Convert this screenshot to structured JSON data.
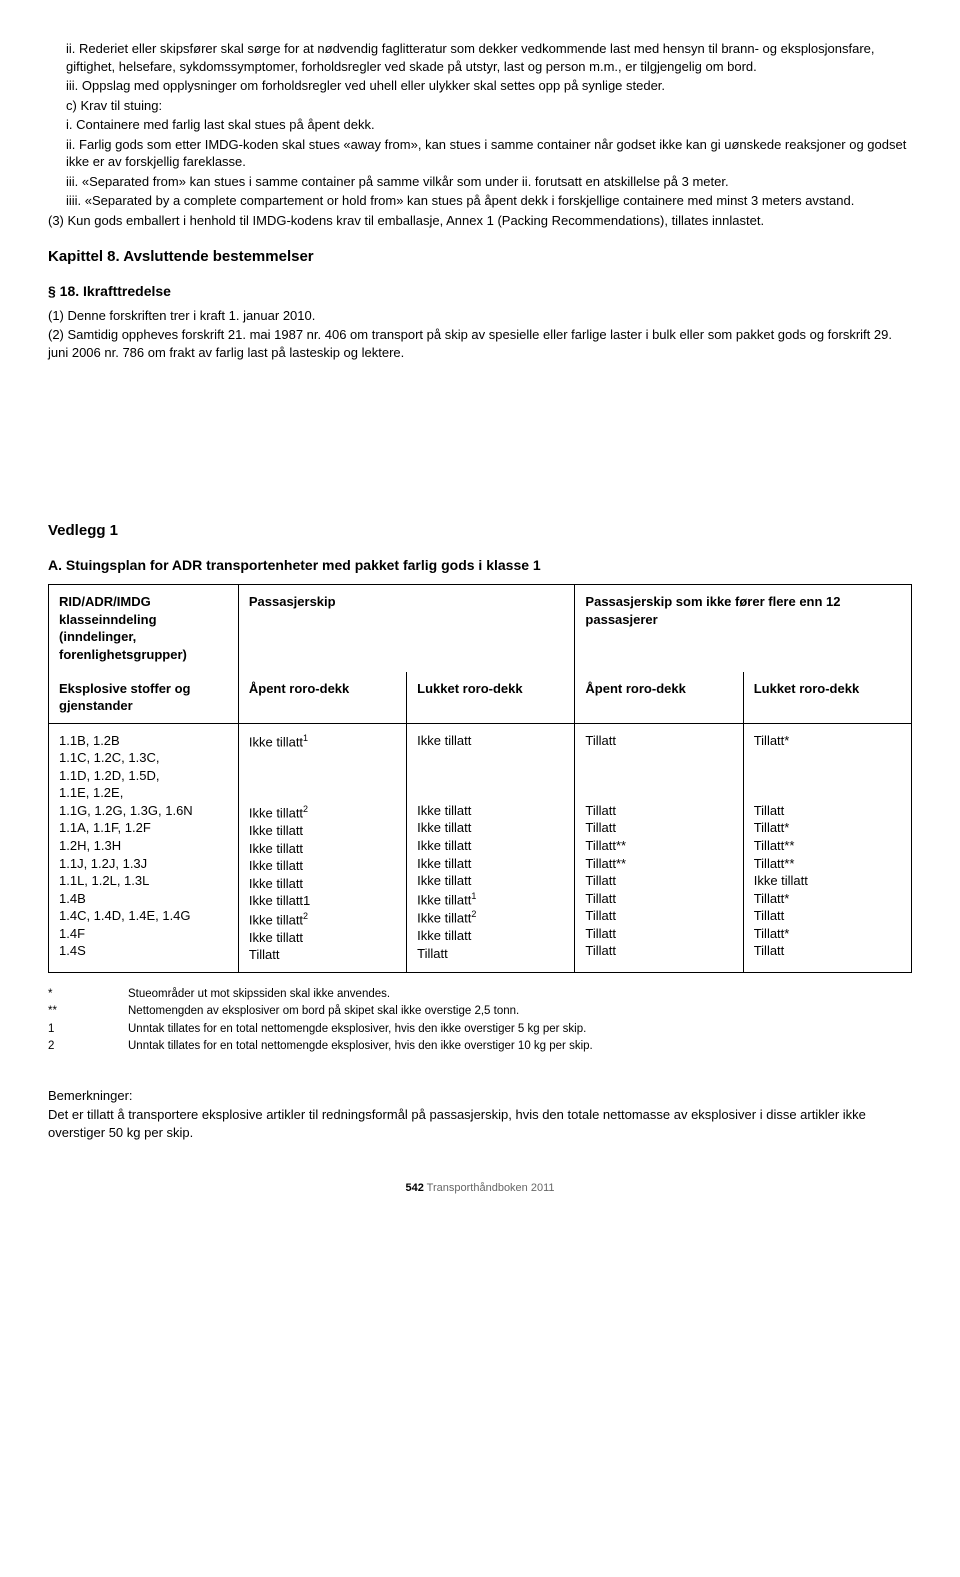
{
  "top": {
    "ii": "ii. Rederiet eller skipsfører skal sørge for at nødvendig faglitteratur som dekker vedkommende last med hensyn til brann- og eksplosjonsfare, giftighet, helsefare, sykdomssymptomer, forholdsregler ved skade på utstyr, last og person m.m., er tilgjengelig om bord.",
    "iii": "iii. Oppslag med opplysninger om forholdsregler ved uhell eller ulykker skal settes opp på synlige steder.",
    "c": "c) Krav til stuing:",
    "ci": "i. Containere med farlig last skal stues på åpent dekk.",
    "cii": "ii. Farlig gods som etter IMDG-koden skal stues «away from», kan stues i samme container når godset ikke kan gi uønskede reaksjoner og godset ikke er av forskjellig fareklasse.",
    "ciii": "iii. «Separated from» kan stues i samme container på samme vilkår som under ii. forutsatt en atskillelse på 3 meter.",
    "ciiii": "iiii. «Separated by a complete compartement or hold from» kan stues på åpent dekk i forskjellige containere med minst 3 meters avstand.",
    "p3": "(3) Kun gods emballert i henhold til IMDG-kodens krav til emballasje, Annex 1 (Packing Recommendations), tillates innlastet."
  },
  "kap8": {
    "title": "Kapittel 8. Avsluttende bestemmelser",
    "s18_title": "§ 18. Ikrafttredelse",
    "s18_1": "(1) Denne forskriften trer i kraft 1. januar 2010.",
    "s18_2": "(2) Samtidig oppheves forskrift 21. mai 1987 nr. 406 om transport på skip av spesielle eller farlige laster i bulk eller som pakket gods og forskrift 29. juni 2006 nr. 786 om frakt av farlig last på lasteskip og lektere."
  },
  "vedlegg": {
    "title": "Vedlegg 1",
    "sub": "A. Stuingsplan for ADR transportenheter med pakket farlig gods i klasse 1"
  },
  "table": {
    "h1": "RID/ADR/IMDG klasseinndeling (inndelinger, forenlighetsgrupper)",
    "h2": "Passasjerskip",
    "h3": "Passasjerskip som ikke fører flere enn 12 passasjerer",
    "sub1": "Eksplosive stoffer og gjenstander",
    "sub2": "Åpent roro-dekk",
    "sub3": "Lukket roro-dekk",
    "sub4": "Åpent roro-dekk",
    "sub5": "Lukket roro-dekk",
    "rows": [
      {
        "label": "1.1B, 1.2B",
        "c1": "Ikke tillatt¹",
        "c2": "Ikke tillatt",
        "c3": "Tillatt",
        "c4": "Tillatt*"
      },
      {
        "label": "1.1C, 1.2C, 1.3C,",
        "c1": "",
        "c2": "",
        "c3": "",
        "c4": ""
      },
      {
        "label": "1.1D, 1.2D, 1.5D,",
        "c1": "",
        "c2": "",
        "c3": "",
        "c4": ""
      },
      {
        "label": "1.1E, 1.2E,",
        "c1": "",
        "c2": "",
        "c3": "",
        "c4": ""
      },
      {
        "label": "1.1G, 1.2G, 1.3G, 1.6N",
        "c1": "Ikke tillatt²",
        "c2": "Ikke tillatt",
        "c3": "Tillatt",
        "c4": "Tillatt"
      },
      {
        "label": "1.1A, 1.1F, 1.2F",
        "c1": "Ikke tillatt",
        "c2": "Ikke tillatt",
        "c3": "Tillatt",
        "c4": "Tillatt*"
      },
      {
        "label": "1.2H, 1.3H",
        "c1": "Ikke tillatt",
        "c2": "Ikke tillatt",
        "c3": "Tillatt**",
        "c4": "Tillatt**"
      },
      {
        "label": "1.1J, 1.2J, 1.3J",
        "c1": "Ikke tillatt",
        "c2": "Ikke tillatt",
        "c3": "Tillatt**",
        "c4": "Tillatt**"
      },
      {
        "label": "1.1L, 1.2L, 1.3L",
        "c1": "Ikke tillatt",
        "c2": "Ikke tillatt",
        "c3": "Tillatt",
        "c4": "Ikke tillatt"
      },
      {
        "label": "1.4B",
        "c1": "Ikke tillatt1",
        "c2": "Ikke tillatt¹",
        "c3": "Tillatt",
        "c4": "Tillatt*"
      },
      {
        "label": "1.4C, 1.4D, 1.4E, 1.4G",
        "c1": "Ikke tillatt²",
        "c2": "Ikke tillatt²",
        "c3": "Tillatt",
        "c4": "Tillatt"
      },
      {
        "label": "1.4F",
        "c1": "Ikke tillatt",
        "c2": "Ikke tillatt",
        "c3": "Tillatt",
        "c4": "Tillatt*"
      },
      {
        "label": "1.4S",
        "c1": "Tillatt",
        "c2": "Tillatt",
        "c3": "Tillatt",
        "c4": "Tillatt"
      }
    ]
  },
  "footnotes": {
    "star": "Stueområder ut mot skipssiden skal ikke anvendes.",
    "dstar": "Nettomengden av eksplosiver om bord på skipet skal ikke overstige 2,5 tonn.",
    "n1": "Unntak tillates for en total nettomengde eksplosiver, hvis den ikke overstiger 5 kg per skip.",
    "n2": "Unntak tillates for en total nettomengde eksplosiver, hvis den ikke overstiger 10 kg per skip."
  },
  "remarks": {
    "title": "Bemerkninger:",
    "body": "Det er tillatt å transportere eksplosive artikler til redningsformål på passasjerskip, hvis den totale nettomasse av eksplosiver i disse artikler ikke overstiger 50 kg per skip."
  },
  "footer": {
    "page": "542",
    "book": " Transporthåndboken 2011"
  }
}
